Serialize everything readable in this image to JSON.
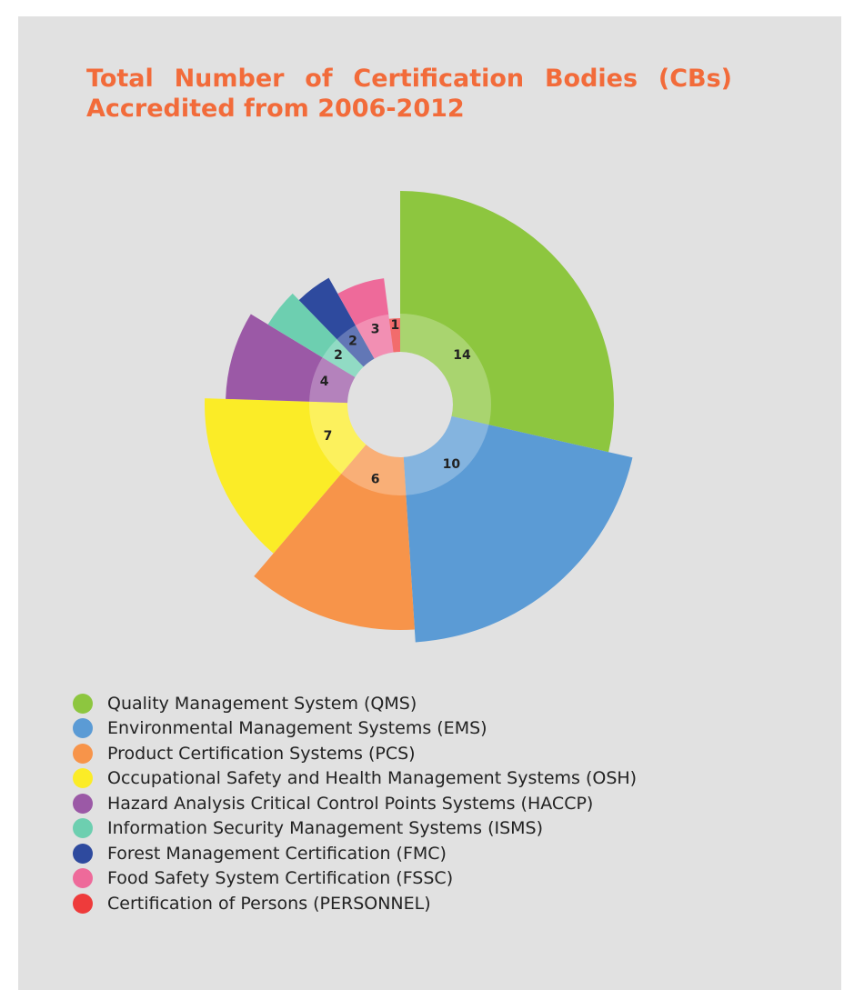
{
  "chart_data": {
    "type": "polar",
    "title": "Total Number of Certification Bodies (CBs) Accredited from 2006-2012",
    "series": [
      {
        "name": "Quality Management System (QMS)",
        "color": "#8dc63f",
        "value": 14
      },
      {
        "name": "Environmental Management Systems (EMS)",
        "color": "#5b9bd5",
        "value": 10
      },
      {
        "name": "Product Certification Systems (PCS)",
        "color": "#f7944a",
        "value": 6
      },
      {
        "name": "Occupational Safety and Health Management Systems (OSH)",
        "color": "#fbec27",
        "value": 7
      },
      {
        "name": "Hazard Analysis Critical Control Points Systems (HACCP)",
        "color": "#9b59a6",
        "value": 4
      },
      {
        "name": "Information Security Management Systems (ISMS)",
        "color": "#6dcfb0",
        "value": 2
      },
      {
        "name": "Forest Management Certification (FMC)",
        "color": "#2e4a9e",
        "value": 2
      },
      {
        "name": "Food Safety System Certification (FSSC)",
        "color": "#ee6a9a",
        "value": 3
      },
      {
        "name": "Certification of Persons (PERSONNEL)",
        "color": "#ee3b3b",
        "value": 1
      }
    ]
  }
}
